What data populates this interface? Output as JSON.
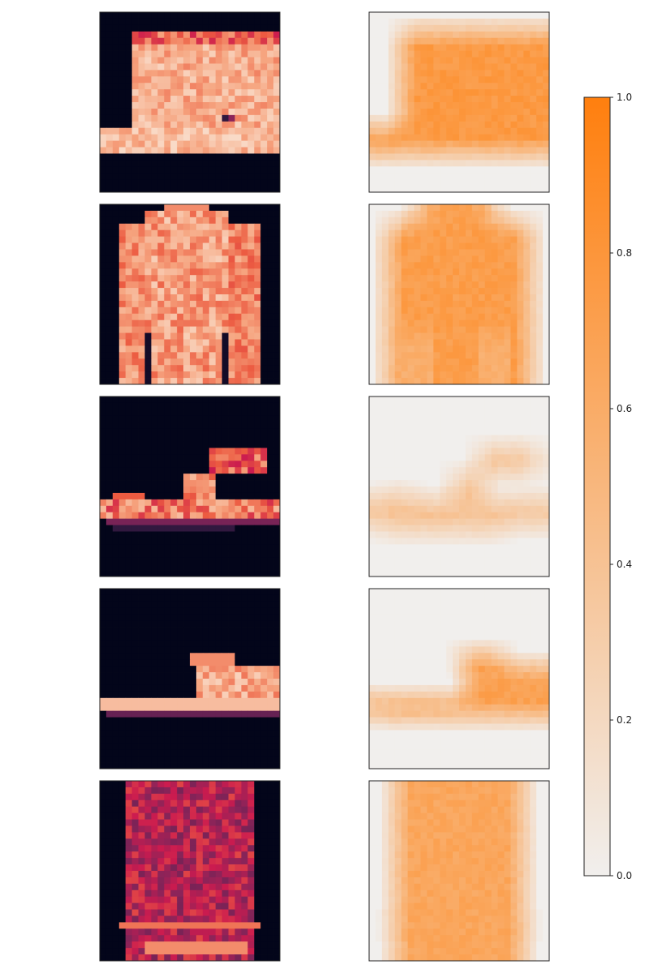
{
  "chart_data": {
    "type": "heatmap",
    "layout": "grid of image pairs: original (left column) and attribution map (right column), one shared colorbar",
    "rows": [
      {
        "item": "shirt",
        "original_colormap": "rocket",
        "attribution_colormap": "white-to-orange"
      },
      {
        "item": "pullover",
        "original_colormap": "rocket",
        "attribution_colormap": "white-to-orange"
      },
      {
        "item": "sandal",
        "original_colormap": "rocket",
        "attribution_colormap": "white-to-orange"
      },
      {
        "item": "sneaker",
        "original_colormap": "rocket",
        "attribution_colormap": "white-to-orange"
      },
      {
        "item": "pullover",
        "original_colormap": "rocket",
        "attribution_colormap": "white-to-orange"
      }
    ],
    "axes_ticks": "none",
    "colorbar": {
      "range": [
        0.0,
        1.0
      ],
      "ticks": [
        "0.0",
        "0.2",
        "0.4",
        "0.6",
        "0.8",
        "1.0"
      ],
      "color_low": "#f1efed",
      "color_high": "#ff7f0e"
    }
  }
}
